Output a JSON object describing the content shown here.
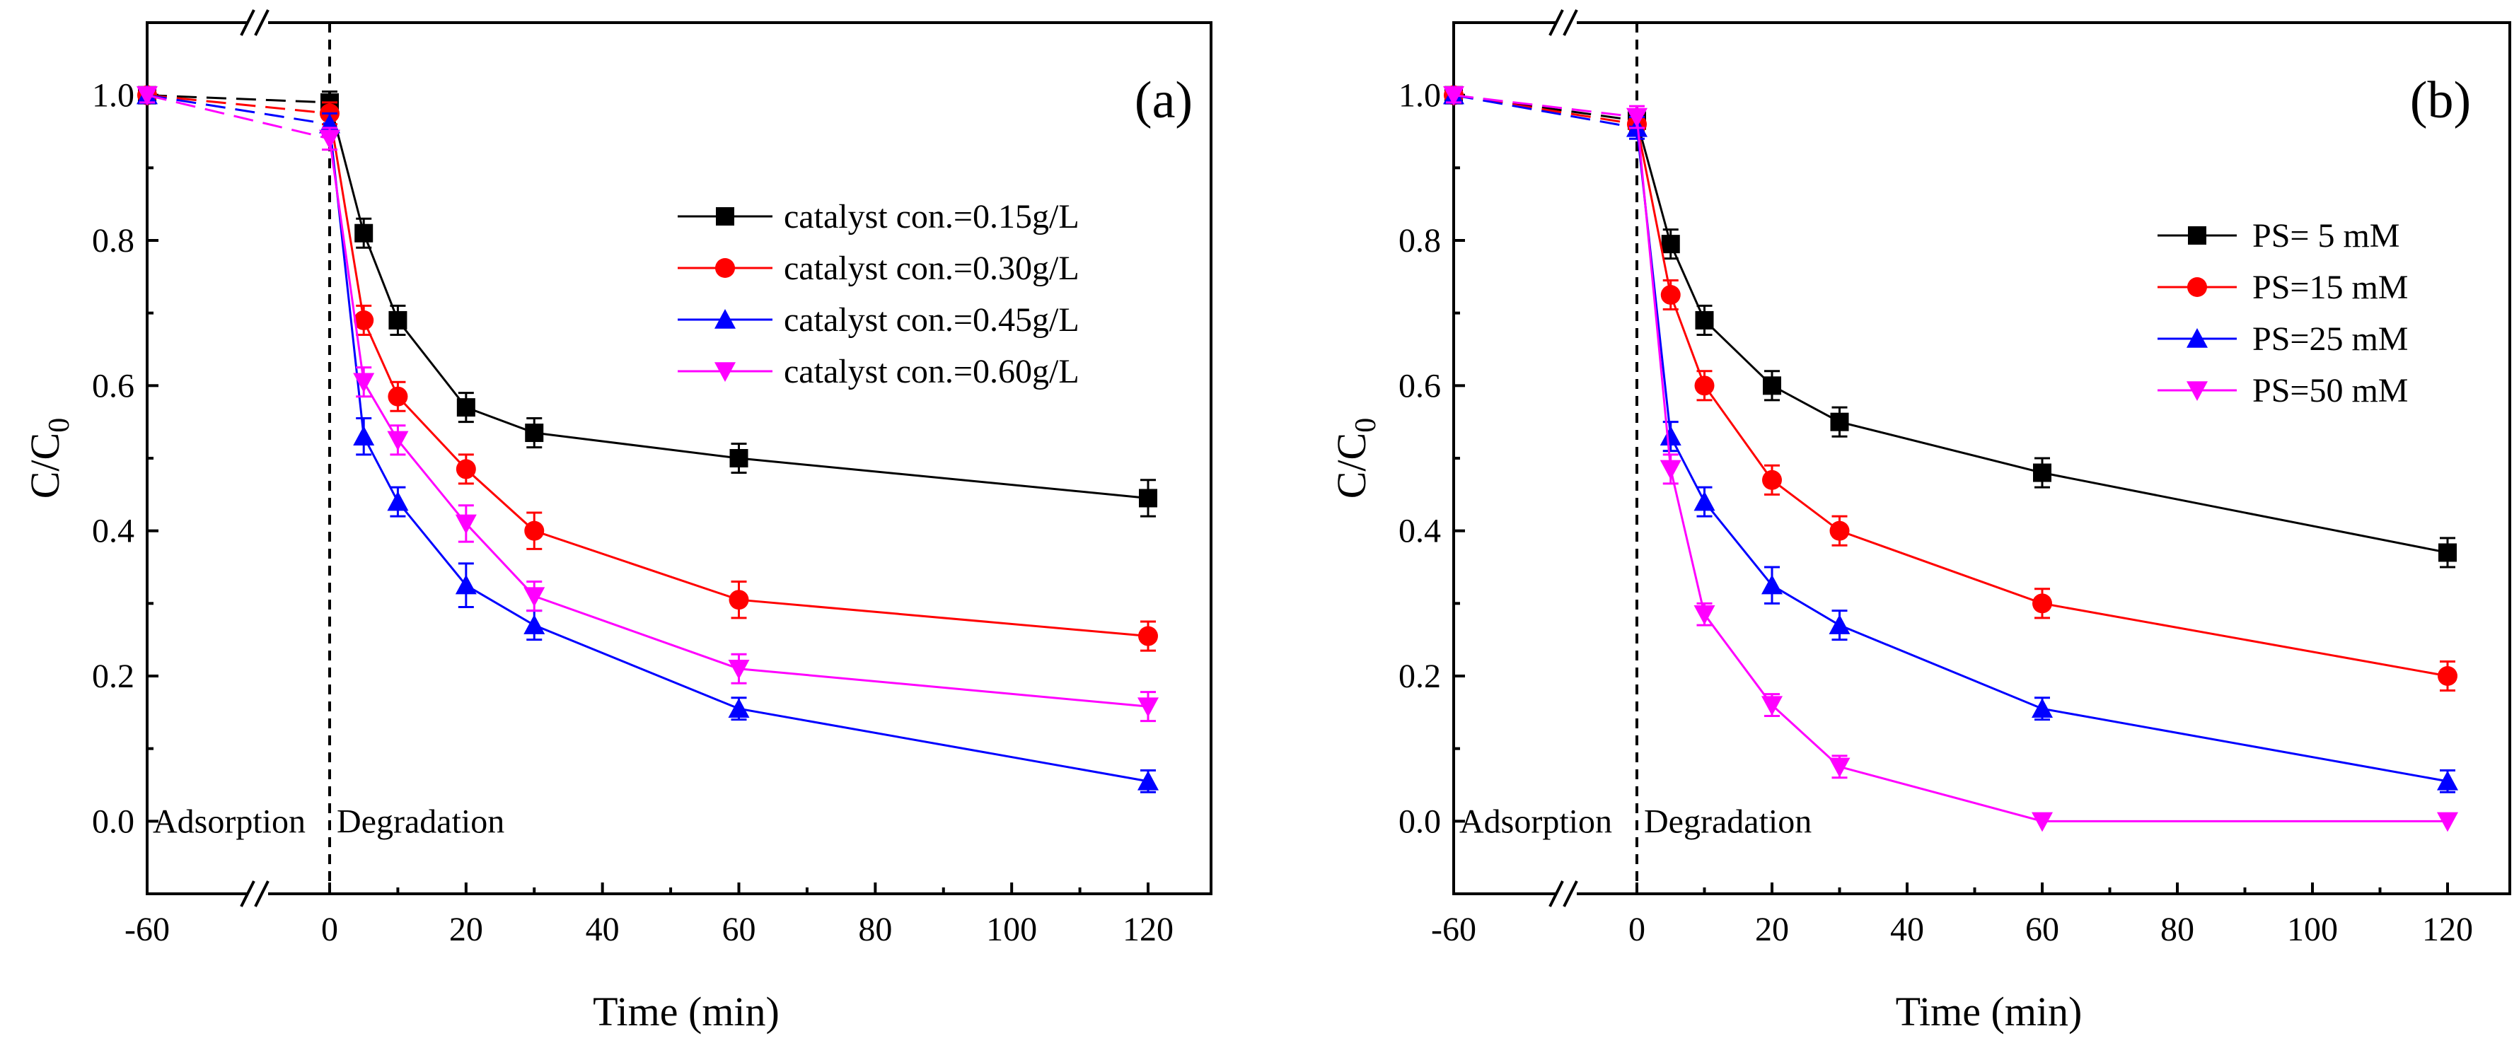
{
  "chart_data": [
    {
      "type": "line",
      "panel_label": "(a)",
      "xlabel": "Time (min)",
      "ylabel": "C/C",
      "ylabel_sub": "0",
      "x_ticks": [
        -60,
        0,
        20,
        40,
        60,
        80,
        100,
        120
      ],
      "x_tick_labels": [
        "-60",
        "0",
        "20",
        "40",
        "60",
        "80",
        "100",
        "120"
      ],
      "y_ticks": [
        0.0,
        0.2,
        0.4,
        0.6,
        0.8,
        1.0
      ],
      "y_tick_labels": [
        "0.0",
        "0.2",
        "0.4",
        "0.6",
        "0.8",
        "1.0"
      ],
      "ylim": [
        -0.1,
        1.1
      ],
      "axis_break": true,
      "phase_labels": [
        "Adsorption",
        "Degradation"
      ],
      "legend_position": "right",
      "x": [
        -60,
        0,
        5,
        10,
        20,
        30,
        60,
        120
      ],
      "series": [
        {
          "name": "catalyst con.=0.15g/L",
          "color": "#000000",
          "marker": "square",
          "values": [
            1.0,
            0.99,
            0.81,
            0.69,
            0.57,
            0.535,
            0.5,
            0.445
          ],
          "errors": [
            0.01,
            0.015,
            0.02,
            0.02,
            0.02,
            0.02,
            0.02,
            0.025
          ]
        },
        {
          "name": "catalyst con.=0.30g/L",
          "color": "#ff0000",
          "marker": "circle",
          "values": [
            1.0,
            0.975,
            0.69,
            0.585,
            0.485,
            0.4,
            0.305,
            0.255
          ],
          "errors": [
            0.01,
            0.015,
            0.02,
            0.02,
            0.02,
            0.025,
            0.025,
            0.02
          ]
        },
        {
          "name": "catalyst con.=0.45g/L",
          "color": "#0000ff",
          "marker": "triangle-up",
          "values": [
            1.0,
            0.96,
            0.53,
            0.44,
            0.325,
            0.27,
            0.155,
            0.055
          ],
          "errors": [
            0.01,
            0.015,
            0.025,
            0.02,
            0.03,
            0.02,
            0.015,
            0.015
          ]
        },
        {
          "name": "catalyst con.=0.60g/L",
          "color": "#ff00ff",
          "marker": "triangle-down",
          "values": [
            1.0,
            0.94,
            0.605,
            0.525,
            0.41,
            0.31,
            0.21,
            0.158
          ],
          "errors": [
            0.01,
            0.015,
            0.02,
            0.02,
            0.025,
            0.02,
            0.02,
            0.02
          ]
        }
      ]
    },
    {
      "type": "line",
      "panel_label": "(b)",
      "xlabel": "Time (min)",
      "ylabel": "C/C",
      "ylabel_sub": "0",
      "x_ticks": [
        -60,
        0,
        20,
        40,
        60,
        80,
        100,
        120
      ],
      "x_tick_labels": [
        "-60",
        "0",
        "20",
        "40",
        "60",
        "80",
        "100",
        "120"
      ],
      "y_ticks": [
        0.0,
        0.2,
        0.4,
        0.6,
        0.8,
        1.0
      ],
      "y_tick_labels": [
        "0.0",
        "0.2",
        "0.4",
        "0.6",
        "0.8",
        "1.0"
      ],
      "ylim": [
        -0.1,
        1.1
      ],
      "axis_break": true,
      "phase_labels": [
        "Adsorption",
        "Degradation"
      ],
      "legend_position": "right",
      "x": [
        -60,
        0,
        5,
        10,
        20,
        30,
        60,
        120
      ],
      "series": [
        {
          "name": "PS= 5 mM",
          "color": "#000000",
          "marker": "square",
          "values": [
            1.0,
            0.965,
            0.795,
            0.69,
            0.6,
            0.55,
            0.48,
            0.37
          ],
          "errors": [
            0.01,
            0.015,
            0.02,
            0.02,
            0.02,
            0.02,
            0.02,
            0.02
          ]
        },
        {
          "name": "PS=15 mM",
          "color": "#ff0000",
          "marker": "circle",
          "values": [
            1.0,
            0.96,
            0.725,
            0.6,
            0.47,
            0.4,
            0.3,
            0.2
          ],
          "errors": [
            0.01,
            0.015,
            0.02,
            0.02,
            0.02,
            0.02,
            0.02,
            0.02
          ]
        },
        {
          "name": "PS=25 mM",
          "color": "#0000ff",
          "marker": "triangle-up",
          "values": [
            1.0,
            0.955,
            0.53,
            0.44,
            0.325,
            0.27,
            0.155,
            0.055
          ],
          "errors": [
            0.01,
            0.015,
            0.02,
            0.02,
            0.025,
            0.02,
            0.015,
            0.015
          ]
        },
        {
          "name": "PS=50 mM",
          "color": "#ff00ff",
          "marker": "triangle-down",
          "values": [
            1.0,
            0.97,
            0.485,
            0.285,
            0.16,
            0.075,
            0.0,
            0.0
          ],
          "errors": [
            0.01,
            0.015,
            0.02,
            0.015,
            0.015,
            0.015,
            0.005,
            0.005
          ]
        }
      ]
    }
  ]
}
